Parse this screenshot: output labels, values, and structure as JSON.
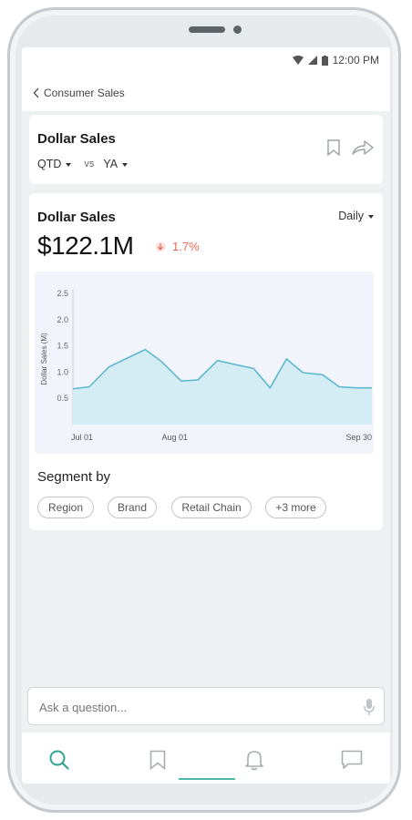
{
  "status_bar": {
    "time": "12:00 PM"
  },
  "header": {
    "breadcrumb": "Consumer Sales"
  },
  "summary_card": {
    "title": "Dollar Sales",
    "period": "QTD",
    "vs_label": "vs",
    "compare": "YA"
  },
  "metric_card": {
    "title": "Dollar Sales",
    "granularity": "Daily",
    "value": "$122.1M",
    "change": "1.7%",
    "change_color": "#e8695a"
  },
  "chart_data": {
    "type": "area",
    "ylabel": "Dollar Sales (M)",
    "y_ticks": [
      "2.5",
      "2.0",
      "1.5",
      "1.0",
      "0.5"
    ],
    "ylim": [
      0,
      2.5
    ],
    "x_tick_labels": [
      "Jul 01",
      "Aug 01",
      "Sep 30"
    ],
    "x_tick_positions": [
      0,
      31,
      91
    ],
    "x_range": [
      0,
      91
    ],
    "series": [
      {
        "x": [
          0,
          5,
          11,
          16,
          22,
          27,
          33,
          38,
          44,
          49,
          55,
          60,
          65,
          70,
          76,
          81,
          86,
          91
        ],
        "values": [
          0.68,
          0.72,
          1.1,
          1.25,
          1.43,
          1.2,
          0.83,
          0.85,
          1.22,
          1.15,
          1.07,
          0.7,
          1.25,
          0.99,
          0.95,
          0.72,
          0.7,
          0.7
        ]
      }
    ],
    "line_color": "#5fb8ce",
    "fill_color": "#d4ecf4",
    "grid": false
  },
  "segment": {
    "title": "Segment by",
    "chips": [
      "Region",
      "Brand",
      "Retail Chain",
      "+3 more"
    ]
  },
  "ask": {
    "placeholder": "Ask a question..."
  },
  "colors": {
    "accent": "#2fa48f"
  },
  "nav_icons": [
    "search-icon",
    "bookmark-icon",
    "bell-icon",
    "chat-icon"
  ]
}
